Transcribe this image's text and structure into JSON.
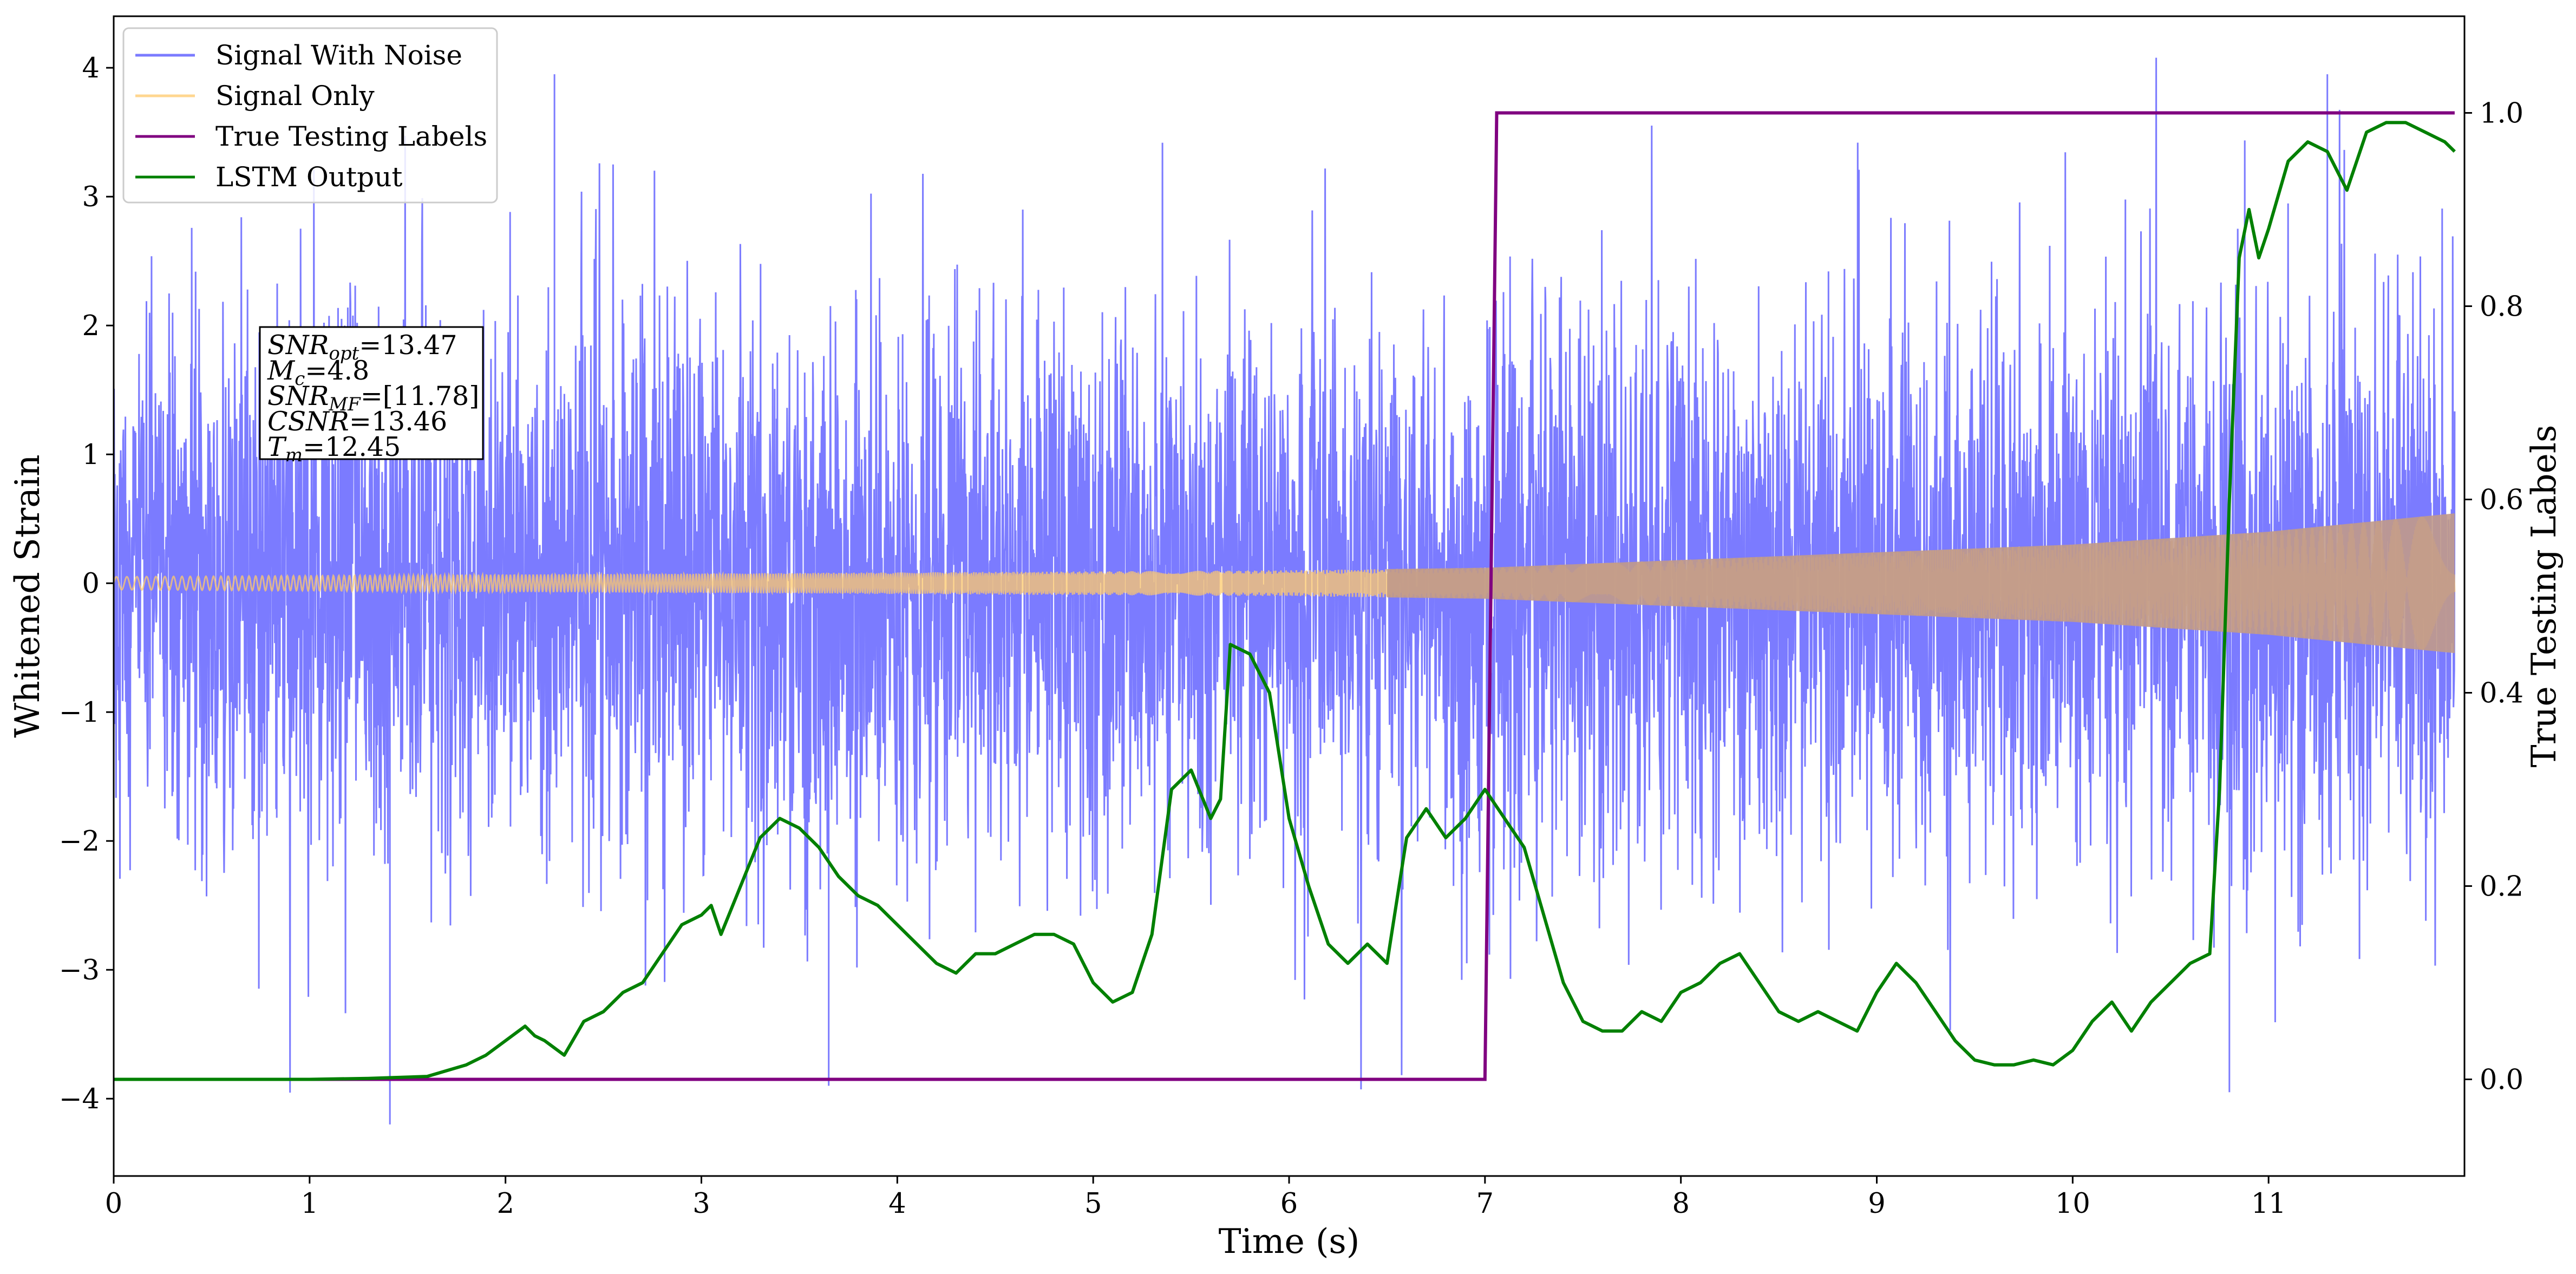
{
  "chart_data": {
    "type": "line",
    "xlabel": "Time (s)",
    "ylabel": "Whitened Strain",
    "y2label": "True Testing Labels",
    "xlim": [
      0,
      12
    ],
    "ylim": [
      -4.6,
      4.4
    ],
    "y2lim": [
      -0.1,
      1.1
    ],
    "grid": false,
    "legend_position": "top-left",
    "x_ticks": [
      0,
      1,
      2,
      3,
      4,
      5,
      6,
      7,
      8,
      9,
      10,
      11
    ],
    "x_tick_labels": [
      "0",
      "1",
      "2",
      "3",
      "4",
      "5",
      "6",
      "7",
      "8",
      "9",
      "10",
      "11"
    ],
    "y_ticks": [
      -4,
      -3,
      -2,
      -1,
      0,
      1,
      2,
      3,
      4
    ],
    "y_tick_labels": [
      "−4",
      "−3",
      "−2",
      "−1",
      "0",
      "1",
      "2",
      "3",
      "4"
    ],
    "y2_ticks": [
      0.0,
      0.2,
      0.4,
      0.6,
      0.8,
      1.0
    ],
    "y2_tick_labels": [
      "0.0",
      "0.2",
      "0.4",
      "0.6",
      "0.8",
      "1.0"
    ],
    "annotation": {
      "lines": [
        {
          "main": "SNR",
          "sub": "opt",
          "rest": "=13.47"
        },
        {
          "main": "M",
          "sub": "c",
          "rest": "=4.8"
        },
        {
          "main": "SNR",
          "sub": "MF",
          "rest": "=[11.78]"
        },
        {
          "main": "CSNR",
          "sub": "",
          "rest": "=13.46"
        },
        {
          "main": "T",
          "sub": "m",
          "rest": "=12.45"
        }
      ]
    },
    "series": [
      {
        "name": "Signal With Noise",
        "axis": "left",
        "color": "#7b7bff",
        "description_values": {
          "x_range": [
            0,
            12
          ],
          "std": 1.0,
          "max": 3.95,
          "min": -4.2
        }
      },
      {
        "name": "Signal Only",
        "axis": "left",
        "color": "#ffc96b",
        "envelope": {
          "x": [
            0,
            6,
            7,
            10,
            11,
            12
          ],
          "amplitude": [
            0.05,
            0.1,
            0.12,
            0.3,
            0.4,
            0.55
          ]
        }
      },
      {
        "name": "True Testing Labels",
        "axis": "right",
        "color": "#800080",
        "x": [
          0,
          7.0,
          7.06,
          12
        ],
        "y": [
          0,
          0,
          1,
          1
        ]
      },
      {
        "name": "LSTM Output",
        "axis": "right",
        "color": "#008000",
        "x": [
          0,
          0.5,
          1.0,
          1.3,
          1.6,
          1.8,
          1.9,
          2.0,
          2.1,
          2.15,
          2.2,
          2.3,
          2.4,
          2.5,
          2.6,
          2.7,
          2.8,
          2.9,
          3.0,
          3.05,
          3.1,
          3.2,
          3.3,
          3.4,
          3.5,
          3.6,
          3.7,
          3.8,
          3.9,
          4.0,
          4.1,
          4.2,
          4.3,
          4.4,
          4.5,
          4.6,
          4.7,
          4.8,
          4.9,
          5.0,
          5.1,
          5.2,
          5.3,
          5.4,
          5.5,
          5.6,
          5.65,
          5.7,
          5.8,
          5.9,
          6.0,
          6.1,
          6.2,
          6.3,
          6.4,
          6.5,
          6.6,
          6.7,
          6.8,
          6.9,
          7.0,
          7.1,
          7.2,
          7.3,
          7.4,
          7.5,
          7.6,
          7.7,
          7.8,
          7.9,
          8.0,
          8.1,
          8.2,
          8.3,
          8.4,
          8.5,
          8.6,
          8.7,
          8.8,
          8.9,
          9.0,
          9.1,
          9.2,
          9.3,
          9.4,
          9.5,
          9.6,
          9.7,
          9.8,
          9.9,
          10.0,
          10.1,
          10.2,
          10.3,
          10.4,
          10.5,
          10.6,
          10.7,
          10.75,
          10.8,
          10.85,
          10.9,
          10.95,
          11.0,
          11.1,
          11.2,
          11.3,
          11.4,
          11.5,
          11.6,
          11.7,
          11.8,
          11.9,
          11.95
        ],
        "y": [
          0,
          0,
          0,
          0.001,
          0.003,
          0.015,
          0.025,
          0.04,
          0.055,
          0.045,
          0.04,
          0.025,
          0.06,
          0.07,
          0.09,
          0.1,
          0.13,
          0.16,
          0.17,
          0.18,
          0.15,
          0.2,
          0.25,
          0.27,
          0.26,
          0.24,
          0.21,
          0.19,
          0.18,
          0.16,
          0.14,
          0.12,
          0.11,
          0.13,
          0.13,
          0.14,
          0.15,
          0.15,
          0.14,
          0.1,
          0.08,
          0.09,
          0.15,
          0.3,
          0.32,
          0.27,
          0.29,
          0.45,
          0.44,
          0.4,
          0.27,
          0.2,
          0.14,
          0.12,
          0.14,
          0.12,
          0.25,
          0.28,
          0.25,
          0.27,
          0.3,
          0.27,
          0.24,
          0.17,
          0.1,
          0.06,
          0.05,
          0.05,
          0.07,
          0.06,
          0.09,
          0.1,
          0.12,
          0.13,
          0.1,
          0.07,
          0.06,
          0.07,
          0.06,
          0.05,
          0.09,
          0.12,
          0.1,
          0.07,
          0.04,
          0.02,
          0.015,
          0.015,
          0.02,
          0.015,
          0.03,
          0.06,
          0.08,
          0.05,
          0.08,
          0.1,
          0.12,
          0.13,
          0.3,
          0.6,
          0.85,
          0.9,
          0.85,
          0.88,
          0.95,
          0.97,
          0.96,
          0.92,
          0.98,
          0.99,
          0.99,
          0.98,
          0.97,
          0.96
        ]
      }
    ]
  }
}
